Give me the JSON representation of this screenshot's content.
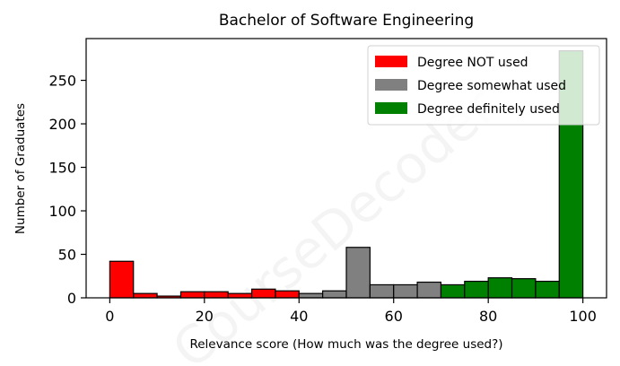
{
  "chart_data": {
    "type": "bar",
    "title": "Bachelor of Software Engineering",
    "xlabel": "Relevance score (How much was the degree used?)",
    "ylabel": "Number of Graduates",
    "xlim": [
      -5,
      105
    ],
    "ylim": [
      0,
      298
    ],
    "xticks": [
      0,
      20,
      40,
      60,
      80,
      100
    ],
    "yticks": [
      0,
      50,
      100,
      150,
      200,
      250
    ],
    "bin_width": 5,
    "grid": false,
    "legend_position": "top-right",
    "watermark": "CourseDecoder",
    "series": [
      {
        "name": "Degree NOT used",
        "color": "#ff0000",
        "bins": [
          {
            "x0": 0,
            "x1": 5,
            "value": 42
          },
          {
            "x0": 5,
            "x1": 10,
            "value": 5
          },
          {
            "x0": 10,
            "x1": 15,
            "value": 2
          },
          {
            "x0": 15,
            "x1": 20,
            "value": 7
          },
          {
            "x0": 20,
            "x1": 25,
            "value": 7
          },
          {
            "x0": 25,
            "x1": 30,
            "value": 5
          },
          {
            "x0": 30,
            "x1": 35,
            "value": 10
          },
          {
            "x0": 35,
            "x1": 40,
            "value": 8
          }
        ]
      },
      {
        "name": "Degree somewhat used",
        "color": "#808080",
        "bins": [
          {
            "x0": 40,
            "x1": 45,
            "value": 5
          },
          {
            "x0": 45,
            "x1": 50,
            "value": 8
          },
          {
            "x0": 50,
            "x1": 55,
            "value": 58
          },
          {
            "x0": 55,
            "x1": 60,
            "value": 15
          },
          {
            "x0": 60,
            "x1": 65,
            "value": 15
          },
          {
            "x0": 65,
            "x1": 70,
            "value": 18
          }
        ]
      },
      {
        "name": "Degree definitely used",
        "color": "#008000",
        "bins": [
          {
            "x0": 70,
            "x1": 75,
            "value": 15
          },
          {
            "x0": 75,
            "x1": 80,
            "value": 19
          },
          {
            "x0": 80,
            "x1": 85,
            "value": 23
          },
          {
            "x0": 85,
            "x1": 90,
            "value": 22
          },
          {
            "x0": 90,
            "x1": 95,
            "value": 19
          },
          {
            "x0": 95,
            "x1": 100,
            "value": 284
          }
        ]
      }
    ]
  }
}
